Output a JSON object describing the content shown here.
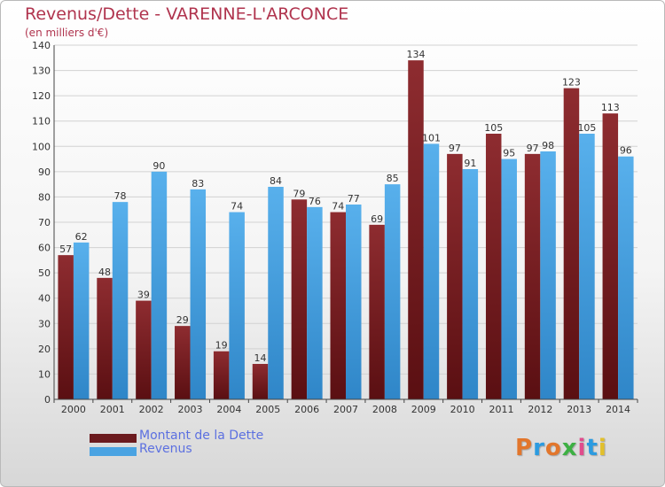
{
  "header": {
    "title": "Revenus/Dette - VARENNE-L'ARCONCE",
    "unit": "(en milliers d'€)"
  },
  "colors": {
    "dette": "#7a1f24",
    "revenus": "#4aa3e2"
  },
  "legend": {
    "items": [
      {
        "label": "Montant de la Dette",
        "color": "#6b1a1e"
      },
      {
        "label": "Revenus",
        "color": "#4aa3e2"
      }
    ]
  },
  "logo": {
    "text": "Proxiti",
    "letter_colors": [
      "#e2762c",
      "#2c9be0",
      "#e2762c",
      "#3db043",
      "#e04c8c",
      "#2c9be0",
      "#e2c02c"
    ]
  },
  "chart_data": {
    "type": "bar",
    "title": "Revenus/Dette - VARENNE-L'ARCONCE",
    "subtitle": "(en milliers d'€)",
    "categories": [
      "2000",
      "2001",
      "2002",
      "2003",
      "2004",
      "2005",
      "2006",
      "2007",
      "2008",
      "2009",
      "2010",
      "2011",
      "2012",
      "2013",
      "2014"
    ],
    "series": [
      {
        "name": "Montant de la Dette",
        "values": [
          57,
          48,
          39,
          29,
          19,
          14,
          79,
          74,
          69,
          134,
          97,
          105,
          97,
          123,
          113
        ]
      },
      {
        "name": "Revenus",
        "values": [
          62,
          78,
          90,
          83,
          74,
          84,
          76,
          77,
          85,
          101,
          91,
          95,
          98,
          105,
          96
        ]
      }
    ],
    "ylim": [
      0,
      140
    ],
    "yticks": [
      0,
      10,
      20,
      30,
      40,
      50,
      60,
      70,
      80,
      90,
      100,
      110,
      120,
      130,
      140
    ],
    "grid": true,
    "legend_position": "bottom-left"
  }
}
